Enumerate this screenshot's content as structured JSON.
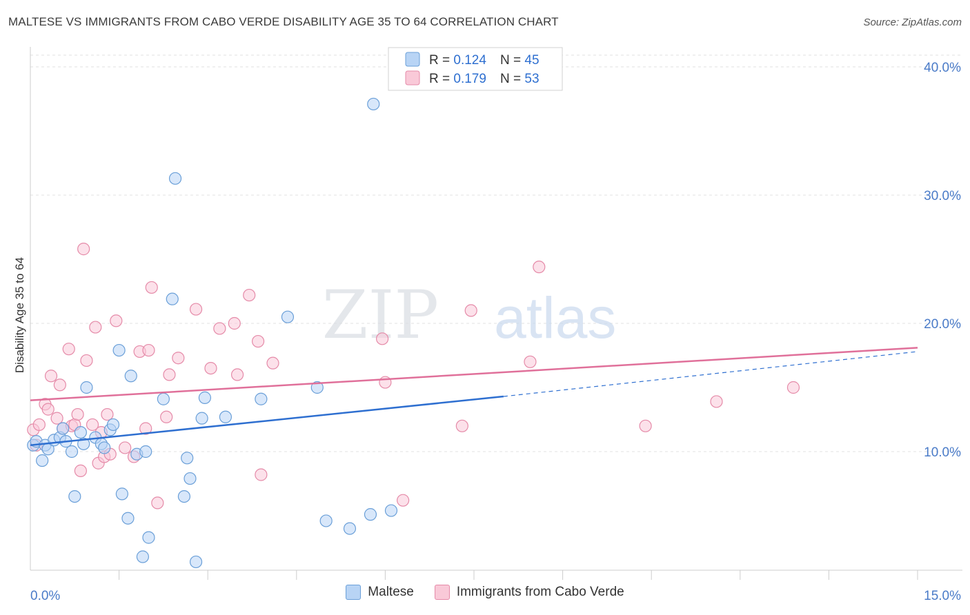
{
  "title": "MALTESE VS IMMIGRANTS FROM CABO VERDE DISABILITY AGE 35 TO 64 CORRELATION CHART",
  "source": "Source: ZipAtlas.com",
  "watermark": {
    "zip": "ZIP",
    "atlas": "atlas"
  },
  "colors": {
    "blue_fill": "#b8d4f5",
    "blue_stroke": "#6a9fd8",
    "blue_line": "#2e6fd0",
    "pink_fill": "#f9c9d8",
    "pink_stroke": "#e58aa8",
    "pink_line": "#e0709a",
    "axis_text": "#4a7bc8"
  },
  "legend_box": {
    "rows": [
      {
        "r_label": "R = ",
        "r_value": "0.124",
        "n_label": "N = ",
        "n_value": "45",
        "color": "blue"
      },
      {
        "r_label": "R = ",
        "r_value": "0.179",
        "n_label": "N = ",
        "n_value": "53",
        "color": "pink"
      }
    ]
  },
  "chart_data": {
    "type": "scatter",
    "title": "MALTESE VS IMMIGRANTS FROM CABO VERDE DISABILITY AGE 35 TO 64 CORRELATION CHART",
    "xlabel": "",
    "ylabel": "Disability Age 35 to 64",
    "xlim": [
      0,
      15
    ],
    "ylim": [
      0,
      40
    ],
    "x_tick_labels": [
      "0.0%",
      "15.0%"
    ],
    "y_ticks": [
      10,
      20,
      30,
      40
    ],
    "y_tick_labels": [
      "10.0%",
      "20.0%",
      "30.0%",
      "40.0%"
    ],
    "grid": true,
    "legend_placement": "bottom",
    "series": [
      {
        "name": "Maltese",
        "color": "blue",
        "trend": {
          "x": [
            0,
            8.0
          ],
          "y": [
            10.5,
            14.3
          ],
          "dashed_to": [
            15,
            17.8
          ]
        },
        "points": [
          [
            0.05,
            10.5
          ],
          [
            0.1,
            10.8
          ],
          [
            0.2,
            9.3
          ],
          [
            0.25,
            10.5
          ],
          [
            0.3,
            10.2
          ],
          [
            0.4,
            10.9
          ],
          [
            0.5,
            11.1
          ],
          [
            0.55,
            11.8
          ],
          [
            0.6,
            10.8
          ],
          [
            0.7,
            10.0
          ],
          [
            0.75,
            6.5
          ],
          [
            0.85,
            11.5
          ],
          [
            0.9,
            10.6
          ],
          [
            0.95,
            15.0
          ],
          [
            1.1,
            11.1
          ],
          [
            1.2,
            10.6
          ],
          [
            1.25,
            10.3
          ],
          [
            1.35,
            11.7
          ],
          [
            1.4,
            12.1
          ],
          [
            1.5,
            17.9
          ],
          [
            1.55,
            6.7
          ],
          [
            1.65,
            4.8
          ],
          [
            1.7,
            15.9
          ],
          [
            1.8,
            9.8
          ],
          [
            1.9,
            1.8
          ],
          [
            1.95,
            10.0
          ],
          [
            2.0,
            3.3
          ],
          [
            2.25,
            14.1
          ],
          [
            2.4,
            21.9
          ],
          [
            2.45,
            31.3
          ],
          [
            2.6,
            6.5
          ],
          [
            2.65,
            9.5
          ],
          [
            2.7,
            7.9
          ],
          [
            2.8,
            1.4
          ],
          [
            2.9,
            12.6
          ],
          [
            2.95,
            14.2
          ],
          [
            3.3,
            12.7
          ],
          [
            3.9,
            14.1
          ],
          [
            4.35,
            20.5
          ],
          [
            4.85,
            15.0
          ],
          [
            5.0,
            4.6
          ],
          [
            5.4,
            4.0
          ],
          [
            5.75,
            5.1
          ],
          [
            5.8,
            37.1
          ],
          [
            6.1,
            5.4
          ]
        ]
      },
      {
        "name": "Immigrants from Cabo Verde",
        "color": "pink",
        "trend": {
          "x": [
            0,
            15
          ],
          "y": [
            14.0,
            18.1
          ]
        },
        "points": [
          [
            0.05,
            11.7
          ],
          [
            0.1,
            10.5
          ],
          [
            0.15,
            12.1
          ],
          [
            0.25,
            13.7
          ],
          [
            0.3,
            13.3
          ],
          [
            0.35,
            15.9
          ],
          [
            0.45,
            12.6
          ],
          [
            0.5,
            15.2
          ],
          [
            0.55,
            11.8
          ],
          [
            0.65,
            18.0
          ],
          [
            0.7,
            12.0
          ],
          [
            0.75,
            12.1
          ],
          [
            0.8,
            12.9
          ],
          [
            0.85,
            8.5
          ],
          [
            0.9,
            25.8
          ],
          [
            0.95,
            17.1
          ],
          [
            1.05,
            12.1
          ],
          [
            1.1,
            19.7
          ],
          [
            1.15,
            9.1
          ],
          [
            1.2,
            11.5
          ],
          [
            1.25,
            9.6
          ],
          [
            1.3,
            12.9
          ],
          [
            1.35,
            9.8
          ],
          [
            1.45,
            20.2
          ],
          [
            1.6,
            10.3
          ],
          [
            1.75,
            9.6
          ],
          [
            1.85,
            17.8
          ],
          [
            1.95,
            11.8
          ],
          [
            2.0,
            17.9
          ],
          [
            2.05,
            22.8
          ],
          [
            2.15,
            6.0
          ],
          [
            2.3,
            12.7
          ],
          [
            2.35,
            16.0
          ],
          [
            2.5,
            17.3
          ],
          [
            2.8,
            21.1
          ],
          [
            3.05,
            16.5
          ],
          [
            3.2,
            19.6
          ],
          [
            3.45,
            20.0
          ],
          [
            3.5,
            16.0
          ],
          [
            3.7,
            22.2
          ],
          [
            3.85,
            18.6
          ],
          [
            3.9,
            8.2
          ],
          [
            4.1,
            16.9
          ],
          [
            5.95,
            18.8
          ],
          [
            6.0,
            15.4
          ],
          [
            6.3,
            6.2
          ],
          [
            7.3,
            12.0
          ],
          [
            7.45,
            21.0
          ],
          [
            8.45,
            17.0
          ],
          [
            8.6,
            24.4
          ],
          [
            10.4,
            12.0
          ],
          [
            11.6,
            13.9
          ],
          [
            12.9,
            15.0
          ]
        ]
      }
    ]
  }
}
